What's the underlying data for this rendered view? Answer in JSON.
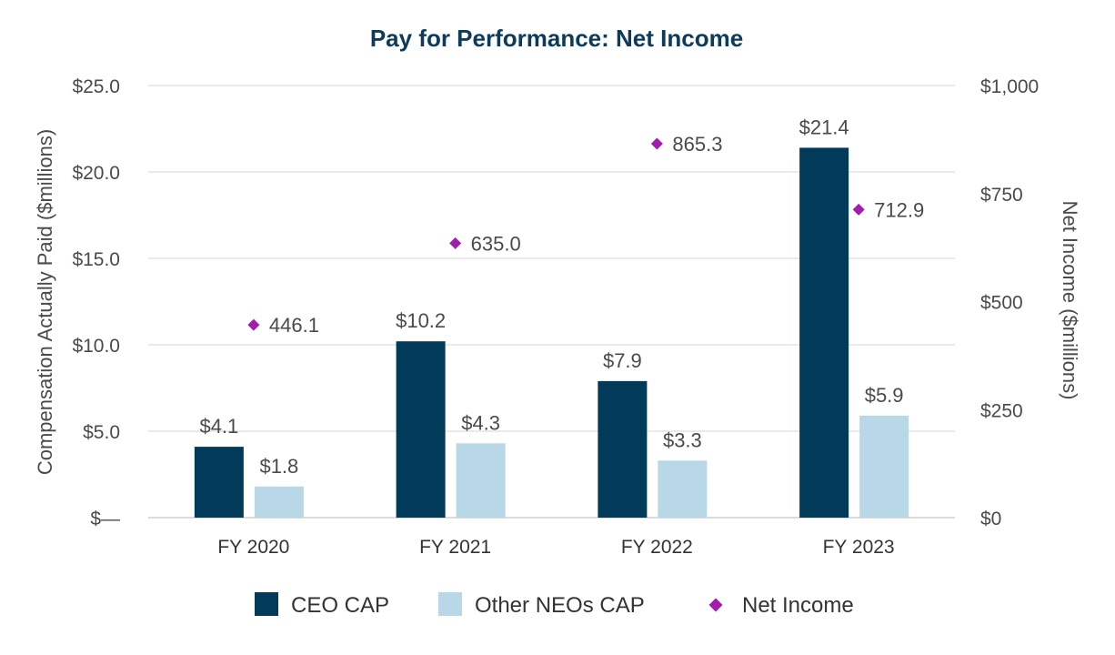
{
  "chart_data": {
    "type": "bar",
    "title": "Pay for Performance: Net Income",
    "categories": [
      "FY 2020",
      "FY 2021",
      "FY 2022",
      "FY 2023"
    ],
    "series": [
      {
        "name": "CEO CAP",
        "kind": "bar",
        "axis": "left",
        "color": "#023a5a",
        "values": [
          4.1,
          10.2,
          7.9,
          21.4
        ],
        "labels": [
          "$4.1",
          "$10.2",
          "$7.9",
          "$21.4"
        ]
      },
      {
        "name": "Other NEOs CAP",
        "kind": "bar",
        "axis": "left",
        "color": "#b8d8e8",
        "values": [
          1.8,
          4.3,
          3.3,
          5.9
        ],
        "labels": [
          "$1.8",
          "$4.3",
          "$3.3",
          "$5.9"
        ]
      },
      {
        "name": "Net Income",
        "kind": "scatter",
        "marker": "diamond",
        "axis": "right",
        "color": "#a21caf",
        "values": [
          446.1,
          635.0,
          865.3,
          712.9
        ],
        "labels": [
          "446.1",
          "635.0",
          "865.3",
          "712.9"
        ]
      }
    ],
    "ylabel": "Compensation Actually Paid ($millions)",
    "y2label": "Net Income ($millions)",
    "ylim": [
      0,
      25
    ],
    "y2lim": [
      0,
      1000
    ],
    "yticks": [
      0,
      5,
      10,
      15,
      20,
      25
    ],
    "ytick_labels": [
      "$—",
      "$5.0",
      "$10.0",
      "$15.0",
      "$20.0",
      "$25.0"
    ],
    "y2ticks": [
      0,
      250,
      500,
      750,
      1000
    ],
    "y2tick_labels": [
      "$0",
      "$250",
      "$500",
      "$750",
      "$1,000"
    ],
    "grid": true,
    "legend_position": "bottom"
  }
}
